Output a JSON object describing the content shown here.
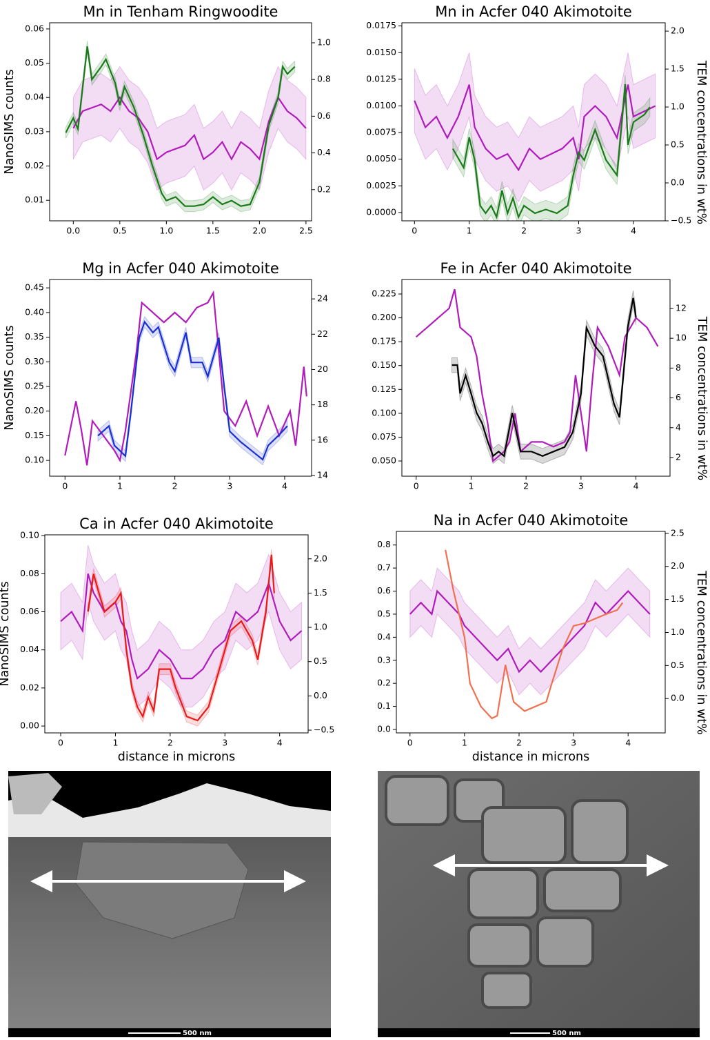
{
  "chart_data": [
    {
      "type": "line",
      "title": "Mn in Tenham Ringwoodite",
      "ylabel": "NanoSIMS counts",
      "xlim": [
        -0.254,
        2.56
      ],
      "xticks": [
        {
          "value": 0,
          "label": "0.0"
        },
        0.5,
        {
          "value": 1,
          "label": "1.0"
        },
        1.5,
        {
          "value": 2,
          "label": "2.0"
        },
        2.5
      ],
      "ylim": [
        0.004,
        0.0618
      ],
      "yticks": [
        0.01,
        0.02,
        0.03,
        0.04,
        0.05,
        0.06
      ],
      "y2lim": [
        0.03,
        1.109
      ],
      "y2ticks": [
        0.2,
        0.4,
        0.6,
        0.8,
        {
          "value": 1,
          "label": "1.0"
        }
      ],
      "series": [
        {
          "color": "#b01cbb",
          "band": 0.009,
          "x": [
            0,
            0.1,
            0.2,
            0.3,
            0.4,
            0.5,
            0.6,
            0.7,
            0.8,
            0.9,
            1.0,
            1.1,
            1.2,
            1.3,
            1.4,
            1.5,
            1.6,
            1.7,
            1.8,
            1.9,
            2.0,
            2.1,
            2.2,
            2.3,
            2.4,
            2.5
          ],
          "values": [
            0.031,
            0.036,
            0.037,
            0.038,
            0.036,
            0.04,
            0.036,
            0.034,
            0.03,
            0.022,
            0.024,
            0.025,
            0.026,
            0.029,
            0.022,
            0.024,
            0.027,
            0.022,
            0.027,
            0.025,
            0.022,
            0.033,
            0.04,
            0.036,
            0.034,
            0.031
          ]
        },
        {
          "color": "#1a7a1a",
          "axis": "y2",
          "band": 0.03,
          "x": [
            -0.08,
            0,
            0.05,
            0.15,
            0.2,
            0.3,
            0.35,
            0.45,
            0.5,
            0.55,
            0.65,
            0.75,
            0.85,
            0.95,
            1.0,
            1.1,
            1.2,
            1.3,
            1.4,
            1.5,
            1.6,
            1.7,
            1.8,
            1.9,
            2.0,
            2.1,
            2.2,
            2.25,
            2.3,
            2.38
          ],
          "values": [
            0.51,
            0.59,
            0.53,
            0.98,
            0.8,
            0.87,
            0.91,
            0.78,
            0.66,
            0.76,
            0.65,
            0.5,
            0.33,
            0.18,
            0.14,
            0.16,
            0.11,
            0.11,
            0.12,
            0.16,
            0.12,
            0.14,
            0.11,
            0.12,
            0.24,
            0.55,
            0.7,
            0.87,
            0.83,
            0.87
          ]
        }
      ]
    },
    {
      "type": "line",
      "title": "Mn in Acfer 040 Akimotoite",
      "y2label": "TEM concentrations in wt%",
      "xlim": [
        -0.23,
        4.58
      ],
      "xticks": [
        0,
        1,
        2,
        3,
        4
      ],
      "ylim": [
        -0.00078,
        0.0178
      ],
      "yticks": [
        {
          "value": 0,
          "label": "0.0000"
        },
        {
          "value": 0.0025,
          "label": "0.0025"
        },
        {
          "value": 0.005,
          "label": "0.0050"
        },
        {
          "value": 0.0075,
          "label": "0.0075"
        },
        {
          "value": 0.01,
          "label": "0.0100"
        },
        {
          "value": 0.0125,
          "label": "0.0125"
        },
        {
          "value": 0.015,
          "label": "0.0150"
        },
        {
          "value": 0.0175,
          "label": "0.0175"
        }
      ],
      "y2lim": [
        -0.5,
        2.11
      ],
      "y2ticks": [
        {
          "value": -0.5,
          "label": "−0.5"
        },
        {
          "value": 0,
          "label": "0.0"
        },
        0.5,
        {
          "value": 1,
          "label": "1.0"
        },
        1.5,
        {
          "value": 2,
          "label": "2.0"
        }
      ],
      "series": [
        {
          "color": "#b01cbb",
          "band": 0.003,
          "x": [
            0,
            0.2,
            0.4,
            0.6,
            0.8,
            1.0,
            1.1,
            1.3,
            1.5,
            1.7,
            1.9,
            2.1,
            2.3,
            2.5,
            2.7,
            2.9,
            3.0,
            3.1,
            3.3,
            3.5,
            3.7,
            3.9,
            4.0,
            4.2,
            4.4
          ],
          "values": [
            0.0105,
            0.008,
            0.009,
            0.007,
            0.009,
            0.012,
            0.008,
            0.006,
            0.005,
            0.0055,
            0.004,
            0.006,
            0.005,
            0.0055,
            0.006,
            0.007,
            0.005,
            0.009,
            0.01,
            0.009,
            0.007,
            0.012,
            0.009,
            0.0095,
            0.01
          ]
        },
        {
          "color": "#1a7a1a",
          "axis": "y2",
          "band": 0.12,
          "x": [
            0.7,
            0.9,
            1.0,
            1.1,
            1.2,
            1.3,
            1.4,
            1.5,
            1.6,
            1.7,
            1.8,
            1.9,
            2.0,
            2.2,
            2.4,
            2.6,
            2.8,
            2.9,
            3.0,
            3.1,
            3.3,
            3.5,
            3.7,
            3.85,
            3.9,
            4.0,
            4.2,
            4.3
          ],
          "values": [
            0.45,
            0.2,
            0.6,
            0.3,
            -0.3,
            -0.4,
            -0.3,
            -0.45,
            -0.1,
            -0.4,
            -0.2,
            -0.45,
            -0.3,
            -0.4,
            -0.35,
            -0.4,
            -0.3,
            0.1,
            0.4,
            0.3,
            0.7,
            0.3,
            0.1,
            1.3,
            0.5,
            0.8,
            0.9,
            1.0
          ]
        }
      ]
    },
    {
      "type": "line",
      "title": "Mg in Acfer 040 Akimotoite",
      "ylabel": "NanoSIMS counts",
      "xlim": [
        -0.28,
        4.49
      ],
      "xticks": [
        0,
        1,
        2,
        3,
        4
      ],
      "ylim": [
        0.068,
        0.467
      ],
      "yticks": [
        {
          "value": 0.1,
          "label": "0.10"
        },
        0.15,
        {
          "value": 0.2,
          "label": "0.20"
        },
        0.25,
        {
          "value": 0.3,
          "label": "0.30"
        },
        0.35,
        {
          "value": 0.4,
          "label": "0.40"
        },
        0.45
      ],
      "y2lim": [
        13.96,
        25.1
      ],
      "y2ticks": [
        14,
        16,
        18,
        20,
        22,
        24
      ],
      "series": [
        {
          "color": "#b01cbb",
          "x": [
            0,
            0.2,
            0.3,
            0.4,
            0.5,
            0.7,
            0.9,
            1.0,
            1.1,
            1.3,
            1.4,
            1.6,
            1.8,
            2.0,
            2.2,
            2.4,
            2.6,
            2.7,
            2.8,
            2.9,
            3.1,
            3.3,
            3.5,
            3.7,
            3.9,
            4.1,
            4.2,
            4.35,
            4.4
          ],
          "values": [
            0.11,
            0.22,
            0.16,
            0.09,
            0.18,
            0.15,
            0.12,
            0.1,
            0.16,
            0.32,
            0.42,
            0.4,
            0.38,
            0.4,
            0.38,
            0.41,
            0.42,
            0.44,
            0.32,
            0.2,
            0.17,
            0.22,
            0.15,
            0.21,
            0.15,
            0.2,
            0.13,
            0.29,
            0.23
          ]
        },
        {
          "color": "#1830d0",
          "axis": "y2",
          "band": 0.3,
          "x": [
            0.6,
            0.8,
            0.9,
            1.0,
            1.1,
            1.2,
            1.35,
            1.45,
            1.6,
            1.7,
            1.9,
            2.0,
            2.2,
            2.3,
            2.5,
            2.6,
            2.8,
            2.9,
            3.0,
            3.2,
            3.4,
            3.6,
            3.7,
            3.9,
            4.05
          ],
          "values": [
            16.25,
            16.8,
            15.7,
            15.4,
            15.1,
            17.6,
            21.8,
            22.7,
            22.1,
            22.4,
            20.4,
            19.9,
            22.1,
            20.4,
            20.4,
            19.6,
            21.8,
            19.0,
            16.5,
            15.9,
            15.4,
            14.9,
            15.7,
            16.3,
            16.8
          ]
        }
      ]
    },
    {
      "type": "line",
      "title": "Fe in Acfer 040 Akimotoite",
      "y2label": "TEM concentrations in wt%",
      "xlim": [
        -0.26,
        4.62
      ],
      "xticks": [
        0,
        1,
        2,
        3,
        4
      ],
      "ylim": [
        0.0341,
        0.2402
      ],
      "yticks": [
        {
          "value": 0.05,
          "label": "0.050"
        },
        0.075,
        {
          "value": 0.1,
          "label": "0.100"
        },
        0.125,
        {
          "value": 0.15,
          "label": "0.150"
        },
        0.175,
        {
          "value": 0.2,
          "label": "0.200"
        },
        0.225
      ],
      "y2lim": [
        0.75,
        13.94
      ],
      "y2ticks": [
        2,
        4,
        6,
        8,
        10,
        12
      ],
      "series": [
        {
          "color": "#b01cbb",
          "x": [
            0,
            0.2,
            0.4,
            0.6,
            0.7,
            0.8,
            1.0,
            1.1,
            1.2,
            1.3,
            1.4,
            1.6,
            1.7,
            1.8,
            1.9,
            2.1,
            2.3,
            2.5,
            2.7,
            2.8,
            2.9,
            3.0,
            3.1,
            3.2,
            3.3,
            3.5,
            3.7,
            3.8,
            4.0,
            4.2,
            4.4
          ],
          "values": [
            0.18,
            0.19,
            0.2,
            0.21,
            0.23,
            0.19,
            0.18,
            0.16,
            0.12,
            0.09,
            0.05,
            0.06,
            0.07,
            0.1,
            0.06,
            0.07,
            0.07,
            0.065,
            0.07,
            0.08,
            0.14,
            0.1,
            0.06,
            0.13,
            0.19,
            0.17,
            0.14,
            0.18,
            0.2,
            0.19,
            0.17
          ]
        },
        {
          "color": "#000000",
          "axis": "y2",
          "band": 0.5,
          "x": [
            0.65,
            0.75,
            0.8,
            0.9,
            1.0,
            1.1,
            1.2,
            1.3,
            1.4,
            1.5,
            1.6,
            1.75,
            1.9,
            2.1,
            2.3,
            2.5,
            2.7,
            2.85,
            3.0,
            3.1,
            3.25,
            3.4,
            3.6,
            3.7,
            3.85,
            3.95,
            4.0
          ],
          "values": [
            8.2,
            8.2,
            6.3,
            7.5,
            6.3,
            5.0,
            4.3,
            3.1,
            2.1,
            2.4,
            2.1,
            5.0,
            2.4,
            2.4,
            2.1,
            2.4,
            2.7,
            3.7,
            6.3,
            10.7,
            9.5,
            8.8,
            5.6,
            4.7,
            10.7,
            12.7,
            11.4
          ]
        }
      ]
    },
    {
      "type": "line",
      "title": "Ca in Acfer 040 Akimotoite",
      "ylabel": "NanoSIMS counts",
      "xlabel": "distance in microns",
      "xlim": [
        -0.29,
        4.52
      ],
      "xticks": [
        0,
        1,
        2,
        3,
        4
      ],
      "ylim": [
        -0.0036,
        0.1004
      ],
      "yticks": [
        {
          "value": 0,
          "label": "0.00"
        },
        0.02,
        0.04,
        0.06,
        0.08,
        {
          "value": 0.1,
          "label": "0.10"
        }
      ],
      "y2lim": [
        -0.54,
        2.35
      ],
      "y2ticks": [
        {
          "value": -0.5,
          "label": "−0.5"
        },
        {
          "value": 0,
          "label": "0.0"
        },
        0.5,
        {
          "value": 1,
          "label": "1.0"
        },
        1.5,
        {
          "value": 2,
          "label": "2.0"
        }
      ],
      "series": [
        {
          "color": "#b01cbb",
          "band": 0.015,
          "x": [
            0,
            0.2,
            0.4,
            0.5,
            0.6,
            0.8,
            1.0,
            1.1,
            1.2,
            1.3,
            1.4,
            1.6,
            1.8,
            2.0,
            2.2,
            2.4,
            2.6,
            2.8,
            3.0,
            3.2,
            3.4,
            3.6,
            3.8,
            4.0,
            4.2,
            4.4
          ],
          "values": [
            0.055,
            0.06,
            0.05,
            0.08,
            0.07,
            0.06,
            0.065,
            0.055,
            0.05,
            0.035,
            0.025,
            0.03,
            0.04,
            0.035,
            0.025,
            0.025,
            0.03,
            0.04,
            0.045,
            0.06,
            0.055,
            0.06,
            0.075,
            0.055,
            0.045,
            0.05
          ]
        },
        {
          "color": "#e8191a",
          "axis": "y2",
          "band": 0.08,
          "x": [
            0.5,
            0.6,
            0.7,
            0.8,
            1.0,
            1.1,
            1.2,
            1.3,
            1.4,
            1.5,
            1.6,
            1.7,
            1.8,
            2.0,
            2.1,
            2.3,
            2.5,
            2.7,
            2.9,
            3.1,
            3.3,
            3.5,
            3.6,
            3.75,
            3.85,
            3.9
          ],
          "values": [
            1.23,
            1.78,
            1.5,
            1.23,
            1.37,
            1.5,
            0.67,
            0.12,
            -0.16,
            -0.3,
            -0.02,
            -0.22,
            0.39,
            0.39,
            0.12,
            -0.3,
            -0.36,
            -0.16,
            0.39,
            0.95,
            1.09,
            0.81,
            0.53,
            1.23,
            2.06,
            1.5
          ]
        }
      ]
    },
    {
      "type": "line",
      "title": "Na in Acfer 040 Akimotoite",
      "y2label": "TEM concentrations in wt%",
      "xlabel": "distance in microns",
      "xlim": [
        -0.25,
        4.68
      ],
      "xticks": [
        0,
        1,
        2,
        3,
        4
      ],
      "ylim": [
        -0.015,
        0.859
      ],
      "yticks": [
        {
          "value": 0,
          "label": "0.0"
        },
        0.1,
        0.2,
        0.3,
        0.4,
        0.5,
        0.6,
        0.7,
        0.8
      ],
      "y2lim": [
        -0.52,
        2.53
      ],
      "y2ticks": [
        {
          "value": 0,
          "label": "0.0"
        },
        0.5,
        {
          "value": 1,
          "label": "1.0"
        },
        1.5,
        {
          "value": 2,
          "label": "2.0"
        },
        2.5
      ],
      "series": [
        {
          "color": "#b01cbb",
          "band": 0.1,
          "x": [
            0,
            0.2,
            0.4,
            0.5,
            0.7,
            0.9,
            1.0,
            1.2,
            1.4,
            1.6,
            1.8,
            2.0,
            2.2,
            2.4,
            2.6,
            2.8,
            3.0,
            3.2,
            3.4,
            3.6,
            3.8,
            4.0,
            4.2,
            4.4
          ],
          "values": [
            0.5,
            0.55,
            0.5,
            0.6,
            0.55,
            0.5,
            0.45,
            0.4,
            0.35,
            0.3,
            0.35,
            0.25,
            0.3,
            0.25,
            0.3,
            0.35,
            0.4,
            0.45,
            0.55,
            0.5,
            0.55,
            0.6,
            0.55,
            0.5
          ]
        },
        {
          "color": "#f07050",
          "axis": "y2",
          "x": [
            0.65,
            0.8,
            1.0,
            1.1,
            1.3,
            1.5,
            1.6,
            1.75,
            1.9,
            2.1,
            2.3,
            2.5,
            2.6,
            2.8,
            3.0,
            3.2,
            3.4,
            3.6,
            3.8,
            3.9
          ],
          "values": [
            2.25,
            1.62,
            0.93,
            0.23,
            -0.12,
            -0.3,
            -0.26,
            0.51,
            -0.05,
            -0.19,
            -0.12,
            -0.05,
            0.23,
            0.75,
            1.1,
            1.14,
            1.21,
            1.28,
            1.34,
            1.45
          ]
        }
      ]
    }
  ],
  "images": [
    {
      "scale_label": "500 nm"
    },
    {
      "scale_label": "500 nm"
    }
  ]
}
